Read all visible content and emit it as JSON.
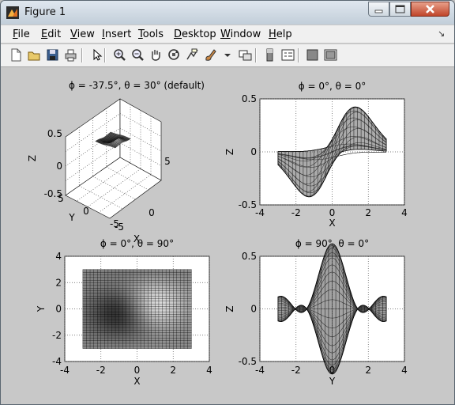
{
  "window": {
    "title": "Figure 1",
    "icon": "matlab-icon",
    "controls": [
      "minimize-icon",
      "maximize-icon",
      "close-icon"
    ]
  },
  "menubar": {
    "items": [
      {
        "label": "File",
        "mnemonic": "F",
        "rest": "ile"
      },
      {
        "label": "Edit",
        "mnemonic": "E",
        "rest": "dit"
      },
      {
        "label": "View",
        "mnemonic": "V",
        "rest": "iew"
      },
      {
        "label": "Insert",
        "mnemonic": "I",
        "rest": "nsert"
      },
      {
        "label": "Tools",
        "mnemonic": "T",
        "rest": "ools"
      },
      {
        "label": "Desktop",
        "mnemonic": "D",
        "rest": "esktop"
      },
      {
        "label": "Window",
        "mnemonic": "W",
        "rest": "indow"
      },
      {
        "label": "Help",
        "mnemonic": "H",
        "rest": "elp"
      }
    ],
    "overflow_icon": "dock-arrow-icon"
  },
  "toolbar": {
    "buttons": [
      "new-figure-icon",
      "open-file-icon",
      "save-icon",
      "print-icon",
      "edit-plot-icon",
      "zoom-in-icon",
      "zoom-out-icon",
      "pan-icon",
      "rotate-3d-icon",
      "data-cursor-icon",
      "brush-icon",
      "brush-dropdown-icon",
      "link-plot-icon",
      "colorbar-icon",
      "legend-icon",
      "hide-plot-tools-icon",
      "show-plot-tools-icon"
    ]
  },
  "plots": [
    {
      "title": "ϕ = -37.5°, θ = 30° (default)",
      "view": {
        "azimuth": -37.5,
        "elevation": 30
      },
      "xlabel": "X",
      "ylabel": "Y",
      "zlabel": "Z",
      "xticks": [
        "-5",
        "0",
        "5"
      ],
      "yticks": [
        "-5",
        "0",
        "5"
      ],
      "zticks": [
        "-0.5",
        "0",
        "0.5"
      ]
    },
    {
      "title": "ϕ = 0°, θ = 0°",
      "view": {
        "azimuth": 0,
        "elevation": 0
      },
      "xlabel": "X",
      "ylabel": "Z",
      "xticks": [
        "-4",
        "-2",
        "0",
        "2",
        "4"
      ],
      "yticks": [
        "-0.5",
        "0",
        "0.5"
      ]
    },
    {
      "title": "ϕ = 0°, θ = 90°",
      "view": {
        "azimuth": 0,
        "elevation": 90
      },
      "xlabel": "X",
      "ylabel": "Y",
      "xticks": [
        "-4",
        "-2",
        "0",
        "2",
        "4"
      ],
      "yticks": [
        "-4",
        "-2",
        "0",
        "2",
        "4"
      ]
    },
    {
      "title": "ϕ = 90°, θ = 0°",
      "view": {
        "azimuth": 90,
        "elevation": 0
      },
      "xlabel": "Y",
      "ylabel": "Z",
      "xticks": [
        "-4",
        "-2",
        "0",
        "2",
        "4"
      ],
      "yticks": [
        "-0.5",
        "0",
        "0.5"
      ]
    }
  ]
}
